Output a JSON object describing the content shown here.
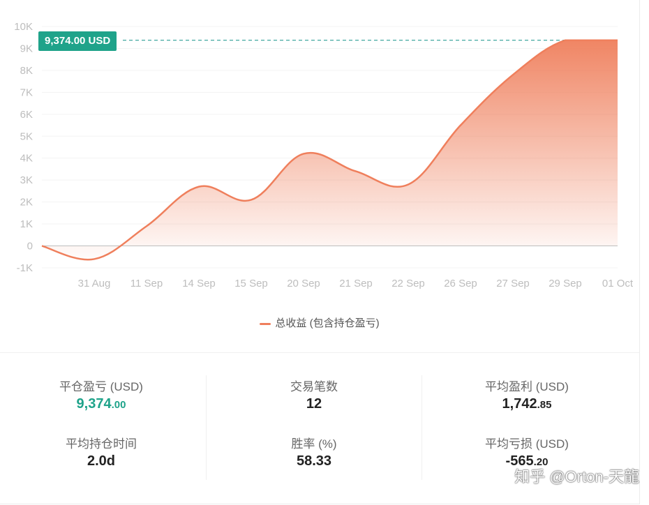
{
  "chart_data": {
    "type": "area",
    "x": [
      "",
      "31 Aug",
      "11 Sep",
      "14 Sep",
      "15 Sep",
      "20 Sep",
      "21 Sep",
      "22 Sep",
      "26 Sep",
      "27 Sep",
      "29 Sep",
      "01 Oct"
    ],
    "y_ticks": [
      "-1K",
      "0",
      "1K",
      "2K",
      "3K",
      "4K",
      "5K",
      "6K",
      "7K",
      "8K",
      "9K",
      "10K"
    ],
    "ylim": [
      -1000,
      10000
    ],
    "series": [
      {
        "name": "总收益 (包含持仓盈亏)",
        "color": "#ef7f5c",
        "values": [
          0,
          -600,
          900,
          2700,
          2100,
          4200,
          3400,
          2800,
          5500,
          7800,
          9374,
          9374
        ]
      }
    ],
    "marker_label": "9,374.00 USD",
    "grid": true,
    "legend_position": "bottom"
  },
  "stats": [
    {
      "label": "平仓盈亏 (USD)",
      "int": "9,374",
      "dec": ".00",
      "positive": true
    },
    {
      "label": "交易笔数",
      "int": "12",
      "dec": "",
      "positive": false
    },
    {
      "label": "平均盈利 (USD)",
      "int": "1,742",
      "dec": ".85",
      "positive": false
    },
    {
      "label": "平均持仓时间",
      "int": "2.0d",
      "dec": "",
      "positive": false
    },
    {
      "label": "胜率 (%)",
      "int": "58.33",
      "dec": "",
      "positive": false
    },
    {
      "label": "平均亏损 (USD)",
      "int": "-565",
      "dec": ".20",
      "positive": false
    }
  ],
  "watermark": "知乎 @Orton-天龍"
}
